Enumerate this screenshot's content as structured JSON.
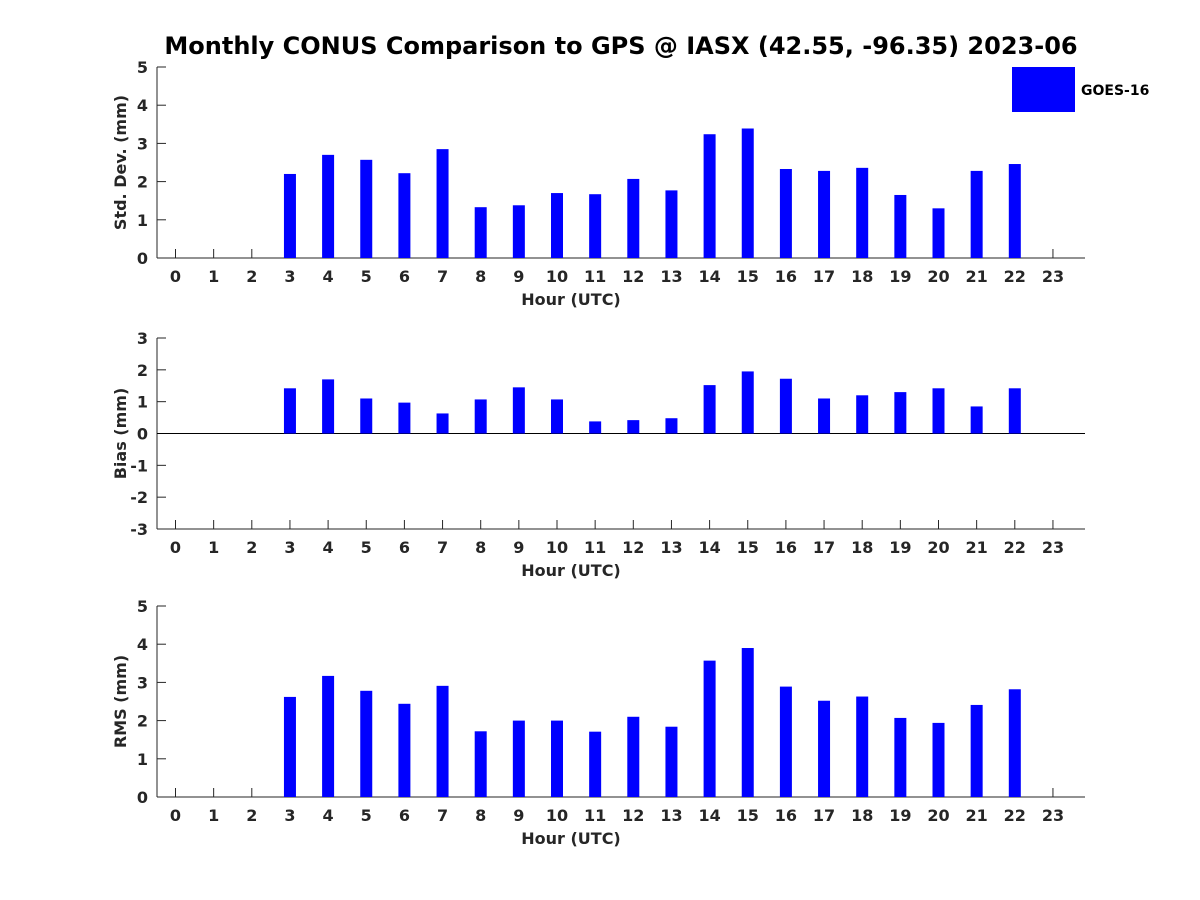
{
  "title": "Monthly CONUS Comparison to GPS @ IASX (42.55, -96.35) 2023-06",
  "legend": {
    "label": "GOES-16",
    "color": "#0000ff",
    "placement": "top-right"
  },
  "bar_color": "#0000ff",
  "chart_data": [
    {
      "type": "bar",
      "xlabel": "Hour (UTC)",
      "ylabel": "Std. Dev. (mm)",
      "ylim": [
        0,
        5
      ],
      "yticks": [
        "0",
        "1",
        "2",
        "3",
        "4",
        "5"
      ],
      "categories": [
        "0",
        "1",
        "2",
        "3",
        "4",
        "5",
        "6",
        "7",
        "8",
        "9",
        "10",
        "11",
        "12",
        "13",
        "14",
        "15",
        "16",
        "17",
        "18",
        "19",
        "20",
        "21",
        "22",
        "23"
      ],
      "series": [
        {
          "name": "GOES-16",
          "values": [
            null,
            null,
            null,
            2.2,
            2.7,
            2.57,
            2.22,
            2.85,
            1.33,
            1.38,
            1.7,
            1.67,
            2.07,
            1.77,
            3.24,
            3.39,
            2.33,
            2.28,
            2.36,
            1.65,
            1.3,
            2.28,
            2.46,
            null
          ]
        }
      ]
    },
    {
      "type": "bar",
      "xlabel": "Hour (UTC)",
      "ylabel": "Bias (mm)",
      "ylim": [
        -3,
        3
      ],
      "yticks": [
        "-3",
        "-2",
        "-1",
        "0",
        "1",
        "2",
        "3"
      ],
      "categories": [
        "0",
        "1",
        "2",
        "3",
        "4",
        "5",
        "6",
        "7",
        "8",
        "9",
        "10",
        "11",
        "12",
        "13",
        "14",
        "15",
        "16",
        "17",
        "18",
        "19",
        "20",
        "21",
        "22",
        "23"
      ],
      "series": [
        {
          "name": "GOES-16",
          "values": [
            null,
            null,
            null,
            1.42,
            1.7,
            1.1,
            0.97,
            0.63,
            1.07,
            1.45,
            1.07,
            0.38,
            0.42,
            0.48,
            1.52,
            1.95,
            1.72,
            1.1,
            1.2,
            1.3,
            1.42,
            0.85,
            1.42,
            null
          ]
        }
      ]
    },
    {
      "type": "bar",
      "xlabel": "Hour (UTC)",
      "ylabel": "RMS (mm)",
      "ylim": [
        0,
        5
      ],
      "yticks": [
        "0",
        "1",
        "2",
        "3",
        "4",
        "5"
      ],
      "categories": [
        "0",
        "1",
        "2",
        "3",
        "4",
        "5",
        "6",
        "7",
        "8",
        "9",
        "10",
        "11",
        "12",
        "13",
        "14",
        "15",
        "16",
        "17",
        "18",
        "19",
        "20",
        "21",
        "22",
        "23"
      ],
      "series": [
        {
          "name": "GOES-16",
          "values": [
            null,
            null,
            null,
            2.62,
            3.17,
            2.78,
            2.44,
            2.91,
            1.72,
            2.0,
            2.0,
            1.71,
            2.1,
            1.84,
            3.57,
            3.9,
            2.89,
            2.52,
            2.63,
            2.07,
            1.94,
            2.41,
            2.82,
            null
          ]
        }
      ]
    }
  ]
}
